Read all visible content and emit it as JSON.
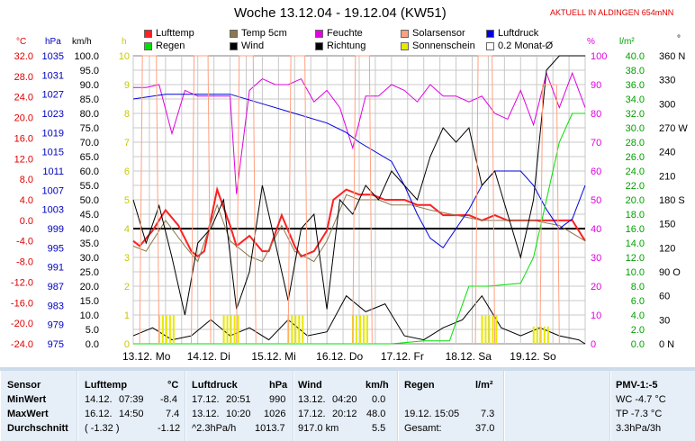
{
  "title": "Woche 13.12.04 - 19.12.04 (KW51)",
  "location_label": "AKTUELL IN ALDINGEN 654mNN",
  "units": {
    "celsius": "°C",
    "hpa": "hPa",
    "kmh": "km/h",
    "h": "h",
    "percent": "%",
    "lm2": "l/m²",
    "deg": "°"
  },
  "legend": [
    {
      "label": "Lufttemp",
      "color": "#ff2020"
    },
    {
      "label": "Temp 5cm",
      "color": "#8c7850"
    },
    {
      "label": "Feuchte",
      "color": "#e000e0"
    },
    {
      "label": "Solarsensor",
      "color": "#ffa080"
    },
    {
      "label": "Luftdruck",
      "color": "#0000e0"
    },
    {
      "label": "Regen",
      "color": "#00e000"
    },
    {
      "label": "Wind",
      "color": "#000000"
    },
    {
      "label": "Richtung",
      "color": "#000000"
    },
    {
      "label": "Sonnenschein",
      "color": "#e8e800"
    },
    {
      "label": "0.2 Monat-Ø",
      "color": "#ffffff"
    }
  ],
  "chart_data": {
    "type": "line",
    "x_tick_labels": [
      "13.12. Mo",
      "14.12. Di",
      "15.12. Mi",
      "16.12. Do",
      "17.12. Fr",
      "18.12. Sa",
      "19.12. So"
    ],
    "axes": {
      "temp_c": {
        "ticks": [
          "32.0",
          "28.0",
          "24.0",
          "20.0",
          "16.0",
          "12.0",
          "8.0",
          "4.0",
          "0.0",
          "-4.0",
          "-8.0",
          "-12.0",
          "-16.0",
          "-20.0",
          "-24.0"
        ],
        "color": "#e00000"
      },
      "pressure_hpa": {
        "ticks": [
          "1035",
          "1031",
          "1027",
          "1023",
          "1019",
          "1015",
          "1011",
          "1007",
          "1003",
          "999",
          "995",
          "991",
          "987",
          "983",
          "979",
          "975"
        ],
        "color": "#0000c0"
      },
      "wind_kmh": {
        "ticks": [
          "100.0",
          "95.0",
          "90.0",
          "85.0",
          "80.0",
          "75.0",
          "70.0",
          "65.0",
          "60.0",
          "55.0",
          "50.0",
          "45.0",
          "40.0",
          "35.0",
          "30.0",
          "25.0",
          "20.0",
          "15.0",
          "10.0",
          "5.0",
          "0.0"
        ],
        "color": "#000000"
      },
      "sun_h": {
        "ticks": [
          "10",
          "9",
          "8",
          "7",
          "6",
          "5",
          "4",
          "3",
          "2",
          "1",
          "0"
        ],
        "color": "#c8c800"
      },
      "humidity_pct": {
        "ticks": [
          "100",
          "90",
          "80",
          "70",
          "60",
          "50",
          "40",
          "30",
          "20",
          "10",
          "0"
        ],
        "color": "#e000e0"
      },
      "rain_lm2": {
        "ticks": [
          "40.0",
          "38.0",
          "36.0",
          "34.0",
          "32.0",
          "30.0",
          "28.0",
          "26.0",
          "24.0",
          "22.0",
          "20.0",
          "18.0",
          "16.0",
          "14.0",
          "12.0",
          "10.0",
          "8.0",
          "6.0",
          "4.0",
          "2.0",
          "0.0"
        ],
        "color": "#00a000"
      },
      "direction_deg": {
        "ticks": [
          "360 N",
          "330",
          "300",
          "270 W",
          "240",
          "210",
          "180 S",
          "150",
          "120",
          "90 O",
          "60",
          "30",
          "0 N"
        ],
        "color": "#000000"
      }
    },
    "series": [
      {
        "name": "Lufttemp",
        "unit": "°C",
        "x": [
          0,
          0.1,
          0.3,
          0.5,
          0.7,
          0.9,
          1.0,
          1.1,
          1.3,
          1.5,
          1.6,
          1.8,
          2.0,
          2.1,
          2.3,
          2.5,
          2.6,
          2.8,
          3.0,
          3.1,
          3.3,
          3.5,
          3.7,
          3.9,
          4.0,
          4.2,
          4.4,
          4.6,
          4.8,
          5.0,
          5.2,
          5.4,
          5.6,
          5.8,
          6.0,
          6.2,
          6.4,
          6.6,
          6.8,
          7.0
        ],
        "y": [
          -4,
          -5,
          -2,
          2,
          -1,
          -6,
          -7,
          -6,
          6,
          -1,
          -5,
          -3,
          -6,
          -6,
          1,
          -5,
          -7,
          -6,
          -2,
          4,
          6,
          5,
          5,
          4,
          4,
          4,
          3,
          3,
          1,
          1,
          1,
          0,
          1,
          0,
          0,
          0,
          0,
          0,
          0,
          -4
        ]
      },
      {
        "name": "Temp 5cm",
        "unit": "°C",
        "x": [
          0,
          0.2,
          0.5,
          0.8,
          1.0,
          1.3,
          1.5,
          1.8,
          2.0,
          2.3,
          2.5,
          2.8,
          3.0,
          3.3,
          3.5,
          3.8,
          4.0,
          4.3,
          4.6,
          5.0,
          5.4,
          5.8,
          6.2,
          6.6,
          7.0
        ],
        "y": [
          -5,
          -6,
          0,
          -5,
          -8,
          3,
          -4,
          -7,
          -8,
          -1,
          -6,
          -8,
          -4,
          5,
          4,
          4,
          3,
          3,
          2,
          1,
          0,
          0,
          0,
          -1,
          -4
        ]
      },
      {
        "name": "Feuchte",
        "unit": "%",
        "x": [
          0,
          0.2,
          0.4,
          0.6,
          0.8,
          1.0,
          1.2,
          1.5,
          1.6,
          1.8,
          2.0,
          2.2,
          2.4,
          2.6,
          2.8,
          3.0,
          3.2,
          3.4,
          3.6,
          3.8,
          4.0,
          4.2,
          4.4,
          4.6,
          4.8,
          5.0,
          5.2,
          5.4,
          5.6,
          5.8,
          6.0,
          6.2,
          6.4,
          6.6,
          6.8,
          7.0
        ],
        "y": [
          89,
          89,
          90,
          73,
          88,
          86,
          86,
          86,
          52,
          88,
          92,
          90,
          90,
          92,
          84,
          88,
          82,
          68,
          86,
          86,
          90,
          88,
          84,
          90,
          86,
          86,
          84,
          86,
          80,
          78,
          88,
          76,
          94,
          82,
          94,
          82
        ]
      },
      {
        "name": "Luftdruck",
        "unit": "hPa",
        "x": [
          0,
          0.5,
          1.0,
          1.3,
          1.5,
          2.0,
          2.5,
          3.0,
          3.3,
          3.5,
          4.0,
          4.2,
          4.4,
          4.6,
          4.8,
          5.0,
          5.2,
          5.4,
          5.6,
          5.8,
          6.0,
          6.2,
          6.4,
          6.6,
          6.8,
          7.0
        ],
        "y": [
          1026,
          1027,
          1027,
          1027,
          1027,
          1025,
          1023,
          1021,
          1019,
          1017,
          1013,
          1008,
          1002,
          997,
          995,
          999,
          1003,
          1008,
          1011,
          1011,
          1011,
          1008,
          1003,
          999,
          1001,
          1008
        ]
      },
      {
        "name": "Wind",
        "unit": "km/h",
        "x": [
          0,
          0.2,
          0.4,
          0.6,
          0.8,
          1.0,
          1.2,
          1.4,
          1.6,
          1.8,
          2.0,
          2.2,
          2.4,
          2.6,
          2.8,
          3.0,
          3.2,
          3.4,
          3.6,
          3.8,
          4.0,
          4.2,
          4.4,
          4.6,
          4.8,
          5.0,
          5.2,
          5.4,
          5.6,
          5.8,
          6.0,
          6.2,
          6.4,
          6.6,
          6.8,
          7.0
        ],
        "y": [
          50,
          35,
          48,
          30,
          10,
          35,
          40,
          50,
          12,
          25,
          55,
          35,
          15,
          40,
          45,
          12,
          50,
          45,
          55,
          50,
          60,
          55,
          50,
          65,
          75,
          70,
          75,
          55,
          60,
          45,
          30,
          50,
          95,
          100,
          100,
          100
        ]
      },
      {
        "name": "Richtung",
        "unit": "°",
        "x": [
          0,
          0.3,
          0.6,
          0.9,
          1.2,
          1.5,
          1.8,
          2.1,
          2.4,
          2.7,
          3.0,
          3.3,
          3.6,
          3.9,
          4.2,
          4.5,
          4.8,
          5.1,
          5.4,
          5.7,
          6.0,
          6.3,
          6.6,
          6.9,
          7.0
        ],
        "y": [
          10,
          20,
          5,
          10,
          30,
          10,
          20,
          5,
          30,
          10,
          15,
          60,
          40,
          50,
          10,
          5,
          20,
          30,
          60,
          20,
          10,
          20,
          10,
          5,
          0
        ]
      },
      {
        "name": "Regen",
        "unit": "l/m²",
        "x": [
          0,
          3.5,
          4.0,
          4.5,
          4.9,
          5.0,
          5.2,
          5.5,
          6.0,
          6.2,
          6.4,
          6.6,
          6.8,
          7.0
        ],
        "y": [
          0,
          0,
          0,
          0.4,
          0.4,
          3.0,
          8.0,
          8.0,
          8.4,
          12.0,
          20.0,
          28.0,
          32.0,
          32.0
        ]
      },
      {
        "name": "Sonnenschein",
        "unit": "h",
        "x": [
          0.5,
          1.5,
          2.5,
          3.5,
          5.5,
          6.3
        ],
        "y": [
          1.0,
          1.0,
          1.0,
          1.0,
          1.0,
          0.6
        ]
      },
      {
        "name": "Solarsensor",
        "unit": "",
        "x": [
          0.1,
          0.9,
          1.6,
          2.4,
          3.4,
          5.3,
          6.3
        ],
        "y": [
          10,
          10,
          10,
          10,
          10,
          10,
          9
        ]
      }
    ],
    "reference_line": {
      "value": 4,
      "axis": "sun_h"
    },
    "grid": true
  },
  "table": {
    "sensor": {
      "header": "Sensor",
      "rows": [
        "MinWert",
        "MaxWert",
        "Durchschnitt"
      ]
    },
    "lufttemp": {
      "header": "Lufttemp",
      "unit": "°C",
      "rows": [
        [
          "14.12.",
          "07:39",
          "-8.4"
        ],
        [
          "16.12.",
          "14:50",
          "7.4"
        ],
        [
          "( -1.32 )",
          "",
          "-1.12"
        ]
      ]
    },
    "luftdruck": {
      "header": "Luftdruck",
      "unit": "hPa",
      "rows": [
        [
          "17.12.",
          "20:51",
          "990"
        ],
        [
          "13.12.",
          "10:20",
          "1026"
        ],
        [
          "^2.3hPa/h",
          "",
          "1013.7"
        ]
      ]
    },
    "wind": {
      "header": "Wind",
      "unit": "km/h",
      "rows": [
        [
          "13.12.",
          "04:20",
          "0.0"
        ],
        [
          "17.12.",
          "20:12",
          "48.0"
        ],
        [
          "917.0 km",
          "",
          "5.5"
        ]
      ]
    },
    "regen": {
      "header": "Regen",
      "unit": "l/m²",
      "rows": [
        [
          "",
          ""
        ],
        [
          "19.12.  15:05",
          "7.3"
        ],
        [
          "Gesamt:",
          "37.0"
        ]
      ]
    },
    "pmv": {
      "header": "PMV-1:-5",
      "rows": [
        "WC -4.7 °C",
        "TP -7.3 °C",
        "3.3hPa/3h"
      ]
    }
  }
}
